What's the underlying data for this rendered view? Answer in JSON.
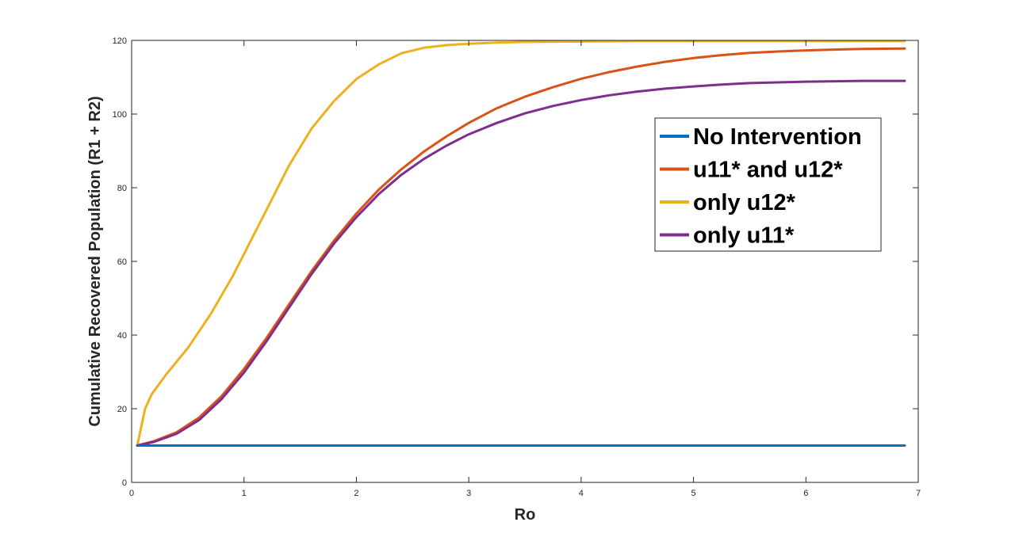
{
  "chart_data": {
    "type": "line",
    "title": "",
    "xlabel": "Ro",
    "ylabel": "Cumulative Recovered Population (R1 + R2)",
    "xlim": [
      0,
      7
    ],
    "ylim": [
      0,
      120
    ],
    "xticks": [
      0,
      1,
      2,
      3,
      4,
      5,
      6,
      7
    ],
    "yticks": [
      0,
      20,
      40,
      60,
      80,
      100,
      120
    ],
    "grid": false,
    "legend_position": "top-right",
    "series": [
      {
        "name": "No Intervention",
        "color": "#0072BD",
        "x": [
          0.05,
          0.5,
          1,
          2,
          3,
          4,
          5,
          6,
          6.88
        ],
        "y": [
          10,
          10,
          10,
          10,
          10,
          10,
          10,
          10,
          10
        ]
      },
      {
        "name": " u11* and u12*",
        "color": "#D95319",
        "x": [
          0.05,
          0.2,
          0.4,
          0.6,
          0.8,
          1.0,
          1.2,
          1.4,
          1.6,
          1.8,
          2.0,
          2.2,
          2.4,
          2.6,
          2.8,
          3.0,
          3.25,
          3.5,
          3.75,
          4.0,
          4.25,
          4.5,
          4.75,
          5.0,
          5.25,
          5.5,
          5.75,
          6.0,
          6.25,
          6.5,
          6.88
        ],
        "y": [
          10,
          11.2,
          13.6,
          17.6,
          23.4,
          30.8,
          39.2,
          48.3,
          57.3,
          65.6,
          73.0,
          79.5,
          85.0,
          89.8,
          93.9,
          97.6,
          101.6,
          104.7,
          107.3,
          109.6,
          111.4,
          112.9,
          114.2,
          115.2,
          116.0,
          116.6,
          117.0,
          117.3,
          117.5,
          117.7,
          117.8
        ]
      },
      {
        "name": "only u12*",
        "color": "#EDB120",
        "x": [
          0.05,
          0.12,
          0.18,
          0.3,
          0.5,
          0.7,
          0.9,
          1.0,
          1.2,
          1.4,
          1.6,
          1.8,
          2.0,
          2.2,
          2.4,
          2.6,
          2.8,
          3.0,
          3.25,
          3.5,
          4.0,
          4.5,
          5.0,
          5.5,
          6.0,
          6.5,
          6.88
        ],
        "y": [
          10,
          20,
          24,
          29,
          36.5,
          45.5,
          56,
          62,
          74,
          86,
          96,
          103.5,
          109.5,
          113.5,
          116.5,
          118,
          118.7,
          119.1,
          119.4,
          119.6,
          119.7,
          119.8,
          119.8,
          119.8,
          119.8,
          119.8,
          119.8
        ]
      },
      {
        "name": "only u11*",
        "color": "#7E2F8E",
        "x": [
          0.05,
          0.2,
          0.4,
          0.6,
          0.8,
          1.0,
          1.2,
          1.4,
          1.6,
          1.8,
          2.0,
          2.2,
          2.4,
          2.6,
          2.8,
          3.0,
          3.25,
          3.5,
          3.75,
          4.0,
          4.25,
          4.5,
          4.75,
          5.0,
          5.25,
          5.5,
          5.75,
          6.0,
          6.25,
          6.5,
          6.88
        ],
        "y": [
          10,
          11.0,
          13.2,
          16.9,
          22.6,
          29.8,
          38.3,
          47.4,
          56.5,
          64.8,
          72.0,
          78.3,
          83.5,
          87.8,
          91.4,
          94.5,
          97.6,
          100.2,
          102.2,
          103.8,
          105.1,
          106.1,
          106.9,
          107.5,
          108.0,
          108.4,
          108.6,
          108.8,
          108.9,
          109.0,
          109.0
        ]
      }
    ]
  }
}
